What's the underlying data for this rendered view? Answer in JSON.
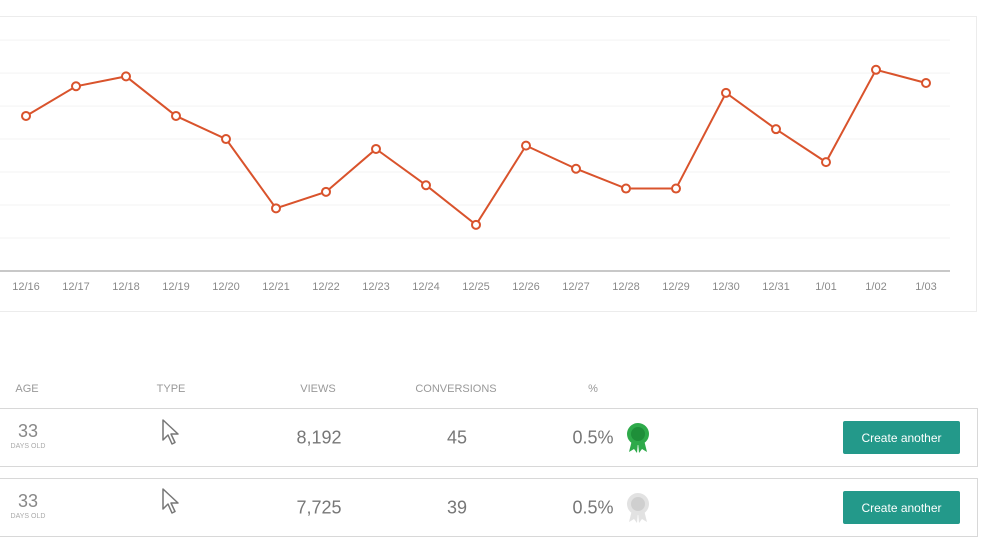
{
  "chart_data": {
    "type": "line",
    "categories": [
      "12/16",
      "12/17",
      "12/18",
      "12/19",
      "12/20",
      "12/21",
      "12/22",
      "12/23",
      "12/24",
      "12/25",
      "12/26",
      "12/27",
      "12/28",
      "12/29",
      "12/30",
      "12/31",
      "1/01",
      "1/02",
      "1/03"
    ],
    "values": [
      4.7,
      5.6,
      5.9,
      4.7,
      4.0,
      1.9,
      2.4,
      3.7,
      2.6,
      1.4,
      3.8,
      3.1,
      2.5,
      2.5,
      5.4,
      4.3,
      3.3,
      6.1,
      5.7
    ],
    "color": "#d9532c",
    "ylim": [
      0,
      7.7
    ],
    "yticks": [
      0,
      1,
      2,
      3,
      4,
      5,
      6,
      7
    ],
    "grid": true
  },
  "table": {
    "headers": [
      "AGE",
      "TYPE",
      "VIEWS",
      "CONVERSIONS",
      "%"
    ],
    "rows": [
      {
        "age": "33",
        "age_unit": "DAYS OLD",
        "views": "8,192",
        "conversions": "45",
        "percent": "0.5%",
        "button": "Create another"
      },
      {
        "age": "33",
        "age_unit": "DAYS OLD",
        "views": "7,725",
        "conversions": "39",
        "percent": "0.5%",
        "button": "Create another"
      }
    ]
  }
}
